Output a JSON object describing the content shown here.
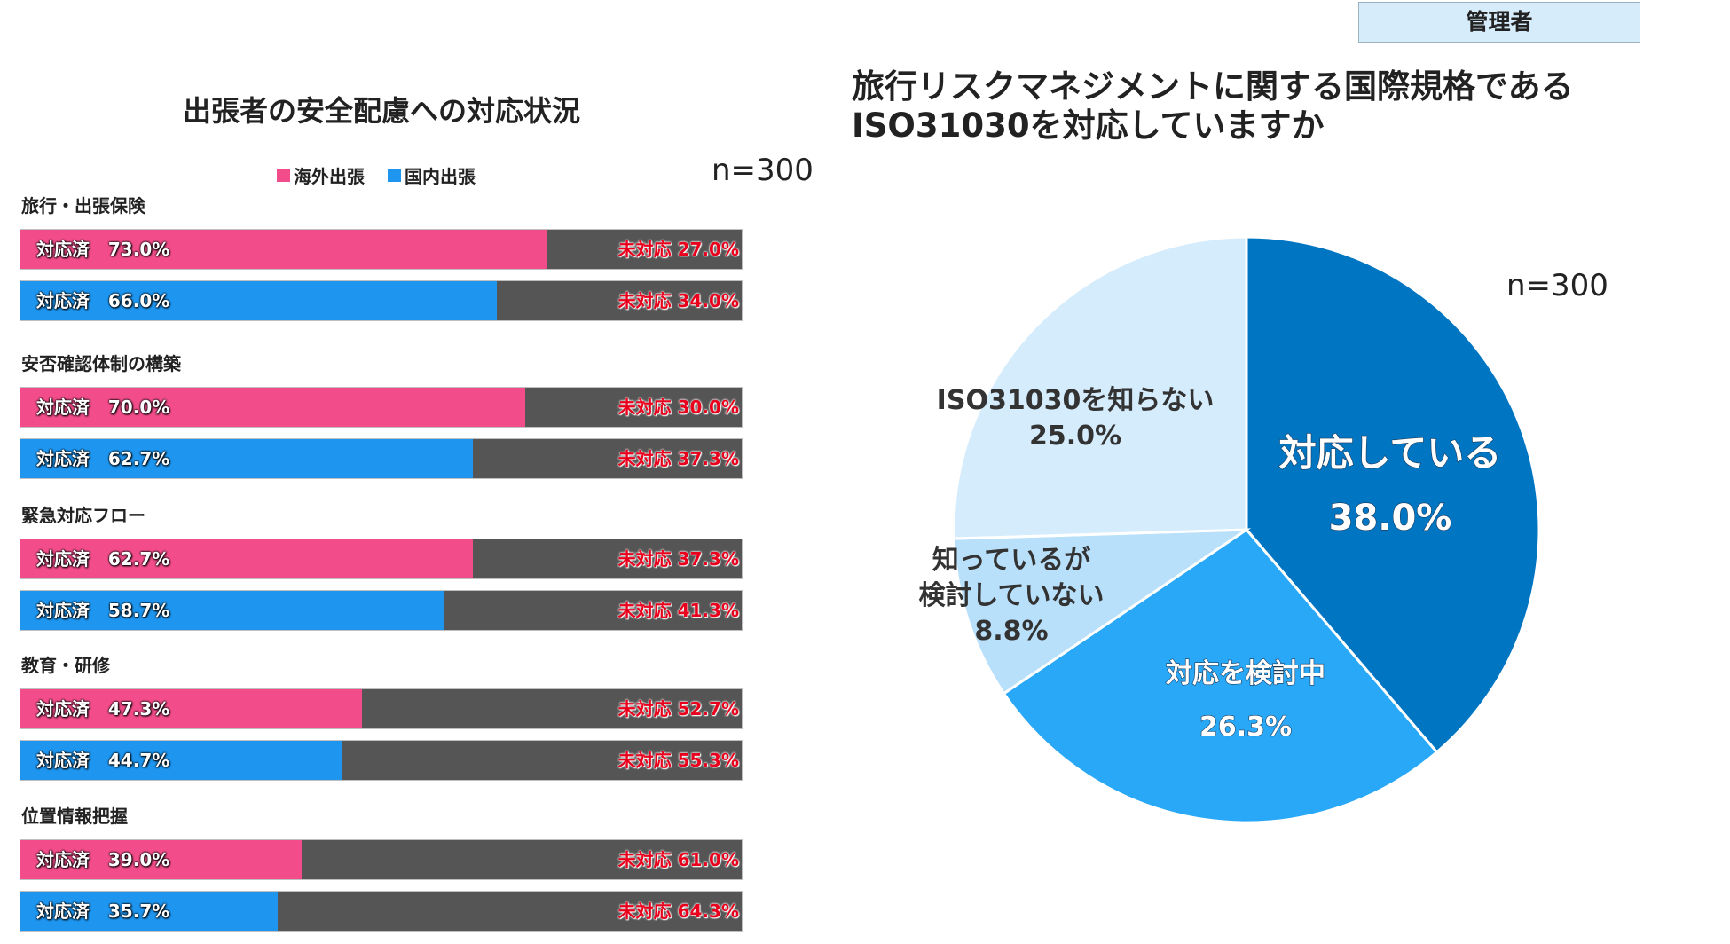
{
  "badge": "管理者",
  "left_title": "出張者の安全配慮への対応状況",
  "right_title_line1": "旅行リスクマネジメントに関する国際規格である",
  "right_title_line2": "ISO31030を対応していますか",
  "chart_data": [
    {
      "type": "bar",
      "orientation": "horizontal-stacked-100",
      "title": "出張者の安全配慮への対応状況",
      "n_label": "n=300",
      "legend": [
        {
          "name": "海外出張",
          "color": "#f24d8a"
        },
        {
          "name": "国内出張",
          "color": "#1e96f0"
        }
      ],
      "done_label": "対応済",
      "undone_label": "未対応",
      "undone_color": "#555555",
      "categories": [
        {
          "label": "旅行・出張保険",
          "overseas": 73.0,
          "domestic": 66.0
        },
        {
          "label": "安否確認体制の構築",
          "overseas": 70.0,
          "domestic": 62.7
        },
        {
          "label": "緊急対応フロー",
          "overseas": 62.7,
          "domestic": 58.7
        },
        {
          "label": "教育・研修",
          "overseas": 47.3,
          "domestic": 44.7
        },
        {
          "label": "位置情報把握",
          "overseas": 39.0,
          "domestic": 35.7
        }
      ]
    },
    {
      "type": "pie",
      "title": "旅行リスクマネジメントに関する国際規格である ISO31030を対応していますか",
      "n_label": "n=300",
      "slices": [
        {
          "label": "対応している",
          "value": 38.0,
          "display": "38.0%",
          "color": "#0075c2",
          "label_color": "#ffffff"
        },
        {
          "label": "対応を検討中",
          "value": 26.3,
          "display": "26.3%",
          "color": "#29a8f8",
          "label_color": "#ffffff"
        },
        {
          "label": "知っているが 検討していない",
          "value": 8.8,
          "display": "8.8%",
          "color": "#b9e0fa",
          "label_color": "#333333"
        },
        {
          "label": "ISO31030を知らない",
          "value": 25.0,
          "display": "25.0%",
          "color": "#d5ecfc",
          "label_color": "#333333"
        }
      ]
    }
  ]
}
